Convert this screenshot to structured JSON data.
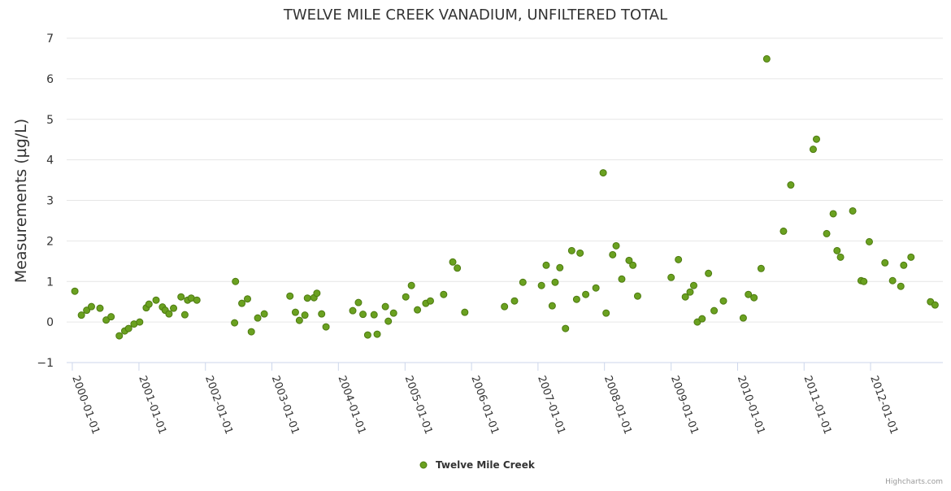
{
  "chart_data": {
    "type": "scatter",
    "title": "TWELVE MILE CREEK VANADIUM, UNFILTERED TOTAL",
    "ylabel": "Measurements (µg/L)",
    "xlabel": "",
    "ylim": [
      -1,
      7
    ],
    "yticks": [
      "−1",
      "0",
      "1",
      "2",
      "3",
      "4",
      "5",
      "6",
      "7"
    ],
    "xlim": [
      "1999-12-01",
      "2013-02-01"
    ],
    "xticks": [
      "2000-01-01",
      "2001-01-01",
      "2002-01-01",
      "2003-01-01",
      "2004-01-01",
      "2005-01-01",
      "2006-01-01",
      "2007-01-01",
      "2008-01-01",
      "2009-01-01",
      "2010-01-01",
      "2011-01-01",
      "2012-01-01"
    ],
    "grid": true,
    "legend": "bottom-center",
    "series": [
      {
        "name": "Twelve Mile Creek",
        "color": "#6aa120",
        "points": [
          {
            "x": "2000-01-15",
            "y": 0.76
          },
          {
            "x": "2000-02-20",
            "y": 0.17
          },
          {
            "x": "2000-03-20",
            "y": 0.29
          },
          {
            "x": "2000-04-15",
            "y": 0.38
          },
          {
            "x": "2000-06-01",
            "y": 0.34
          },
          {
            "x": "2000-07-05",
            "y": 0.05
          },
          {
            "x": "2000-08-01",
            "y": 0.13
          },
          {
            "x": "2000-09-15",
            "y": -0.34
          },
          {
            "x": "2000-10-15",
            "y": -0.22
          },
          {
            "x": "2000-11-05",
            "y": -0.16
          },
          {
            "x": "2000-12-05",
            "y": -0.05
          },
          {
            "x": "2001-01-05",
            "y": 0.0
          },
          {
            "x": "2001-02-10",
            "y": 0.35
          },
          {
            "x": "2001-02-25",
            "y": 0.44
          },
          {
            "x": "2001-04-05",
            "y": 0.54
          },
          {
            "x": "2001-05-10",
            "y": 0.37
          },
          {
            "x": "2001-05-25",
            "y": 0.29
          },
          {
            "x": "2001-06-15",
            "y": 0.2
          },
          {
            "x": "2001-07-10",
            "y": 0.34
          },
          {
            "x": "2001-08-20",
            "y": 0.62
          },
          {
            "x": "2001-09-10",
            "y": 0.18
          },
          {
            "x": "2001-09-25",
            "y": 0.54
          },
          {
            "x": "2001-10-15",
            "y": 0.59
          },
          {
            "x": "2001-11-15",
            "y": 0.54
          },
          {
            "x": "2002-06-10",
            "y": -0.02
          },
          {
            "x": "2002-06-15",
            "y": 1.0
          },
          {
            "x": "2002-07-20",
            "y": 0.46
          },
          {
            "x": "2002-08-20",
            "y": 0.57
          },
          {
            "x": "2002-09-10",
            "y": -0.24
          },
          {
            "x": "2002-10-15",
            "y": 0.1
          },
          {
            "x": "2002-11-20",
            "y": 0.2
          },
          {
            "x": "2003-04-10",
            "y": 0.64
          },
          {
            "x": "2003-05-10",
            "y": 0.24
          },
          {
            "x": "2003-06-01",
            "y": 0.04
          },
          {
            "x": "2003-07-01",
            "y": 0.17
          },
          {
            "x": "2003-07-15",
            "y": 0.59
          },
          {
            "x": "2003-08-20",
            "y": 0.6
          },
          {
            "x": "2003-09-05",
            "y": 0.71
          },
          {
            "x": "2003-10-01",
            "y": 0.2
          },
          {
            "x": "2003-10-25",
            "y": -0.12
          },
          {
            "x": "2004-03-20",
            "y": 0.28
          },
          {
            "x": "2004-04-20",
            "y": 0.48
          },
          {
            "x": "2004-05-15",
            "y": 0.19
          },
          {
            "x": "2004-06-10",
            "y": -0.32
          },
          {
            "x": "2004-07-15",
            "y": 0.18
          },
          {
            "x": "2004-08-01",
            "y": -0.3
          },
          {
            "x": "2004-09-15",
            "y": 0.38
          },
          {
            "x": "2004-10-01",
            "y": 0.02
          },
          {
            "x": "2004-10-30",
            "y": 0.22
          },
          {
            "x": "2005-01-05",
            "y": 0.62
          },
          {
            "x": "2005-02-05",
            "y": 0.9
          },
          {
            "x": "2005-03-10",
            "y": 0.3
          },
          {
            "x": "2005-04-25",
            "y": 0.46
          },
          {
            "x": "2005-05-20",
            "y": 0.52
          },
          {
            "x": "2005-08-01",
            "y": 0.68
          },
          {
            "x": "2005-09-20",
            "y": 1.48
          },
          {
            "x": "2005-10-15",
            "y": 1.33
          },
          {
            "x": "2005-11-25",
            "y": 0.24
          },
          {
            "x": "2006-07-01",
            "y": 0.38
          },
          {
            "x": "2006-08-25",
            "y": 0.52
          },
          {
            "x": "2006-10-10",
            "y": 0.98
          },
          {
            "x": "2007-01-20",
            "y": 0.9
          },
          {
            "x": "2007-02-15",
            "y": 1.4
          },
          {
            "x": "2007-03-20",
            "y": 0.4
          },
          {
            "x": "2007-04-05",
            "y": 0.98
          },
          {
            "x": "2007-05-01",
            "y": 1.34
          },
          {
            "x": "2007-06-01",
            "y": -0.16
          },
          {
            "x": "2007-07-05",
            "y": 1.76
          },
          {
            "x": "2007-08-01",
            "y": 0.56
          },
          {
            "x": "2007-08-20",
            "y": 1.7
          },
          {
            "x": "2007-09-20",
            "y": 0.68
          },
          {
            "x": "2007-11-15",
            "y": 0.84
          },
          {
            "x": "2007-12-25",
            "y": 3.68
          },
          {
            "x": "2008-01-10",
            "y": 0.22
          },
          {
            "x": "2008-02-15",
            "y": 1.66
          },
          {
            "x": "2008-03-05",
            "y": 1.88
          },
          {
            "x": "2008-04-05",
            "y": 1.06
          },
          {
            "x": "2008-05-15",
            "y": 1.52
          },
          {
            "x": "2008-06-05",
            "y": 1.4
          },
          {
            "x": "2008-07-01",
            "y": 0.64
          },
          {
            "x": "2009-01-01",
            "y": 1.1
          },
          {
            "x": "2009-02-10",
            "y": 1.54
          },
          {
            "x": "2009-03-20",
            "y": 0.62
          },
          {
            "x": "2009-04-15",
            "y": 0.74
          },
          {
            "x": "2009-05-05",
            "y": 0.9
          },
          {
            "x": "2009-05-25",
            "y": 0.0
          },
          {
            "x": "2009-06-20",
            "y": 0.08
          },
          {
            "x": "2009-07-25",
            "y": 1.2
          },
          {
            "x": "2009-08-25",
            "y": 0.28
          },
          {
            "x": "2009-10-15",
            "y": 0.52
          },
          {
            "x": "2010-02-01",
            "y": 0.1
          },
          {
            "x": "2010-03-01",
            "y": 0.68
          },
          {
            "x": "2010-04-01",
            "y": 0.6
          },
          {
            "x": "2010-05-10",
            "y": 1.32
          },
          {
            "x": "2010-06-10",
            "y": 6.49
          },
          {
            "x": "2010-09-10",
            "y": 2.24
          },
          {
            "x": "2010-10-20",
            "y": 3.38
          },
          {
            "x": "2011-02-20",
            "y": 4.26
          },
          {
            "x": "2011-03-10",
            "y": 4.51
          },
          {
            "x": "2011-05-05",
            "y": 2.18
          },
          {
            "x": "2011-06-10",
            "y": 2.67
          },
          {
            "x": "2011-07-01",
            "y": 1.76
          },
          {
            "x": "2011-07-20",
            "y": 1.6
          },
          {
            "x": "2011-09-25",
            "y": 2.74
          },
          {
            "x": "2011-11-10",
            "y": 1.02
          },
          {
            "x": "2011-11-25",
            "y": 1.0
          },
          {
            "x": "2011-12-25",
            "y": 1.98
          },
          {
            "x": "2012-03-20",
            "y": 1.46
          },
          {
            "x": "2012-05-01",
            "y": 1.02
          },
          {
            "x": "2012-06-15",
            "y": 0.88
          },
          {
            "x": "2012-07-01",
            "y": 1.4
          },
          {
            "x": "2012-08-10",
            "y": 1.6
          },
          {
            "x": "2012-11-25",
            "y": 0.5
          },
          {
            "x": "2012-12-20",
            "y": 0.42
          }
        ]
      }
    ]
  },
  "credits": "Highcharts.com"
}
